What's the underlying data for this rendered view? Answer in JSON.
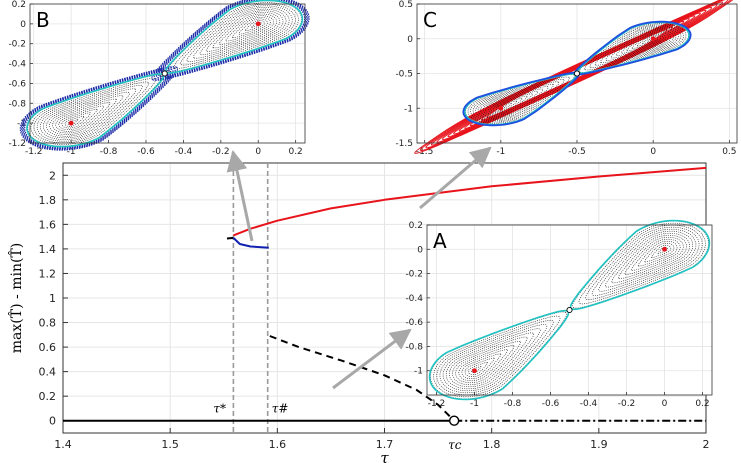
{
  "chart_data": [
    {
      "id": "main",
      "type": "line",
      "title": "",
      "xlabel": "τ",
      "ylabel": "max(T̂) - min(T̂)",
      "xlim": [
        1.4,
        2.0
      ],
      "ylim": [
        -0.1,
        2.1
      ],
      "grid": true,
      "xticks": [
        1.4,
        1.5,
        1.6,
        1.7,
        1.8,
        1.9,
        2
      ],
      "xtick_labels": [
        "1.4",
        "1.5",
        "1.6",
        "1.7",
        "1.8",
        "1.9",
        "2"
      ],
      "yticks": [
        0,
        0.2,
        0.4,
        0.6,
        0.8,
        1,
        1.2,
        1.4,
        1.6,
        1.8,
        2
      ],
      "ytick_labels": [
        "0",
        "0.2",
        "0.4",
        "0.6",
        "0.8",
        "1",
        "1.2",
        "1.4",
        "1.6",
        "1.8",
        "2"
      ],
      "vlines": [
        1.559,
        1.591
      ],
      "markers": {
        "tau_star": "τ*",
        "tau_sharp": "τ#",
        "tau_c": "τc"
      },
      "tau_c": 1.765,
      "series": [
        {
          "name": "stable-equilibrium",
          "color": "#000000",
          "style": "solid",
          "x": [
            1.4,
            1.765
          ],
          "y": [
            0,
            0
          ]
        },
        {
          "name": "unstable-equilibrium",
          "color": "#000000",
          "style": "dashdot",
          "x": [
            1.765,
            2.0
          ],
          "y": [
            0,
            0
          ]
        },
        {
          "name": "unstable-periodic",
          "color": "#000000",
          "style": "dashed",
          "x": [
            1.593,
            1.62,
            1.66,
            1.7,
            1.73,
            1.75,
            1.765
          ],
          "y": [
            0.69,
            0.6,
            0.49,
            0.37,
            0.25,
            0.13,
            0.0
          ]
        },
        {
          "name": "large-orbit",
          "color": "#e8141c",
          "style": "solid",
          "x": [
            1.559,
            1.575,
            1.6,
            1.65,
            1.7,
            1.8,
            1.9,
            2.0
          ],
          "y": [
            1.51,
            1.565,
            1.63,
            1.73,
            1.8,
            1.91,
            1.99,
            2.06
          ]
        },
        {
          "name": "black-short-branch",
          "color": "#000000",
          "style": "solid",
          "x": [
            1.553,
            1.559
          ],
          "y": [
            1.485,
            1.49
          ]
        },
        {
          "name": "blue-branch",
          "color": "#1020b0",
          "style": "solid",
          "x": [
            1.559,
            1.565,
            1.575,
            1.592
          ],
          "y": [
            1.49,
            1.44,
            1.42,
            1.41
          ]
        }
      ]
    },
    {
      "id": "inset-B",
      "type": "scatter",
      "label": "B",
      "xlim": [
        -1.22,
        0.25
      ],
      "ylim": [
        -1.2,
        0.2
      ],
      "xticks": [
        -1.2,
        -1,
        -0.8,
        -0.6,
        -0.4,
        -0.2,
        0,
        0.2
      ],
      "xtick_labels": [
        "-1.2",
        "-1",
        "-0.8",
        "-0.6",
        "-0.4",
        "-0.2",
        "0",
        "0.2"
      ],
      "yticks": [
        -1.2,
        -1,
        -0.8,
        -0.6,
        -0.4,
        -0.2,
        0,
        0.2
      ],
      "ytick_labels": [
        "-1.2",
        "-1",
        "-0.8",
        "-0.6",
        "-0.4",
        "-0.2",
        "0",
        "0.2"
      ],
      "fixed_points": [
        [
          -1,
          -1
        ],
        [
          0,
          0
        ]
      ],
      "saddle": [
        -0.5,
        -0.5
      ]
    },
    {
      "id": "inset-C",
      "type": "scatter",
      "label": "C",
      "xlim": [
        -1.55,
        0.55
      ],
      "ylim": [
        -1.5,
        0.5
      ],
      "xticks": [
        -1.5,
        -1,
        -0.5,
        0,
        0.5
      ],
      "xtick_labels": [
        "-1.5",
        "-1",
        "-0.5",
        "0",
        "0.5"
      ],
      "yticks": [
        -1.5,
        -1,
        -0.5,
        0,
        0.5
      ],
      "ytick_labels": [
        "-1.5",
        "-1",
        "-0.5",
        "0",
        "0.5"
      ],
      "fixed_points": [
        [
          -1,
          -1
        ],
        [
          0,
          0
        ]
      ],
      "saddle": [
        -0.5,
        -0.5
      ]
    },
    {
      "id": "inset-A",
      "type": "scatter",
      "label": "A",
      "xlim": [
        -1.25,
        0.25
      ],
      "ylim": [
        -1.2,
        0.2
      ],
      "xticks": [
        -1.2,
        -1,
        -0.8,
        -0.6,
        -0.4,
        -0.2,
        0,
        0.2
      ],
      "xtick_labels": [
        "-1.2",
        "-1",
        "-0.8",
        "-0.6",
        "-0.4",
        "-0.2",
        "0",
        "0.2"
      ],
      "yticks": [
        -1,
        -0.8,
        -0.6,
        -0.4,
        -0.2,
        0,
        0.2
      ],
      "ytick_labels": [
        "-1",
        "-0.8",
        "-0.6",
        "-0.4",
        "-0.2",
        "0",
        "0.2"
      ],
      "fixed_points": [
        [
          -1,
          -1
        ],
        [
          0,
          0
        ]
      ],
      "saddle": [
        -0.5,
        -0.5
      ]
    }
  ]
}
